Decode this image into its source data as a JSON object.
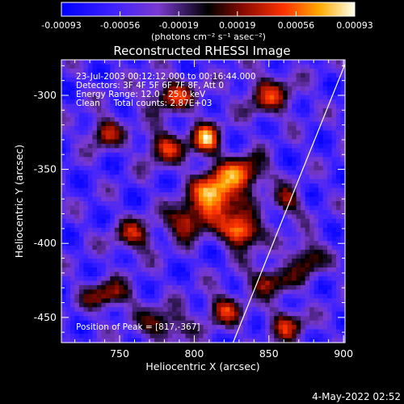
{
  "chart_data": {
    "type": "heatmap",
    "title": "Reconstructed RHESSI Image",
    "xlabel": "Heliocentric X (arcsec)",
    "ylabel": "Heliocentric Y (arcsec)",
    "xlim": [
      711,
      901
    ],
    "ylim": [
      -467,
      -276
    ],
    "x_ticks": [
      750,
      800,
      850,
      900
    ],
    "y_ticks": [
      -300,
      -350,
      -400,
      -450
    ],
    "colorbar": {
      "min": -0.00093,
      "max": 0.00093,
      "ticks": [
        "-0.00093",
        "-0.00056",
        "-0.00019",
        "0.00019",
        "0.00056",
        "0.00093"
      ],
      "unit_label": "(photons cm⁻² s⁻¹ asec⁻²)"
    },
    "info_lines": [
      "23-Jul-2003 00:12:12.000 to 00:16:44.000",
      "Detectors: 3F 4F 5F 6F 7F 8F, Att 0",
      "Energy Range: 12.0 - 25.0 keV",
      "Clean     Total counts: 2.87E+03"
    ],
    "peak_label": "Position of Peak = [817,-367]",
    "peak": [
      817,
      -367
    ],
    "limb_line": [
      [
        826,
        -467
      ],
      [
        901,
        -279
      ]
    ],
    "sources": [
      {
        "x": 815,
        "y": -367,
        "amp": 0.00093,
        "sx": 11,
        "sy": 11
      },
      {
        "x": 832,
        "y": -392,
        "amp": 0.00078,
        "sx": 9,
        "sy": 8
      },
      {
        "x": 808,
        "y": -330,
        "amp": 0.0006,
        "sx": 7,
        "sy": 8
      },
      {
        "x": 835,
        "y": -352,
        "amp": 0.00042,
        "sx": 10,
        "sy": 8
      },
      {
        "x": 795,
        "y": -385,
        "amp": 0.00045,
        "sx": 9,
        "sy": 8
      },
      {
        "x": 780,
        "y": -335,
        "amp": 0.00025,
        "sx": 10,
        "sy": 9
      },
      {
        "x": 785,
        "y": -300,
        "amp": 0.0003,
        "sx": 12,
        "sy": 8
      },
      {
        "x": 850,
        "y": -425,
        "amp": 0.0003,
        "sx": 10,
        "sy": 7
      },
      {
        "x": 740,
        "y": -325,
        "amp": 0.00025,
        "sx": 8,
        "sy": 8
      },
      {
        "x": 850,
        "y": -300,
        "amp": 0.00022,
        "sx": 12,
        "sy": 10
      },
      {
        "x": 742,
        "y": -435,
        "amp": 0.00025,
        "sx": 12,
        "sy": 7
      },
      {
        "x": 820,
        "y": -445,
        "amp": 0.00025,
        "sx": 9,
        "sy": 8
      },
      {
        "x": 875,
        "y": -410,
        "amp": 0.00022,
        "sx": 8,
        "sy": 9
      },
      {
        "x": 760,
        "y": -395,
        "amp": 0.0002,
        "sx": 10,
        "sy": 8
      },
      {
        "x": 780,
        "y": -455,
        "amp": 0.0002,
        "sx": 12,
        "sy": 8
      },
      {
        "x": 862,
        "y": -372,
        "amp": 0.0002,
        "sx": 7,
        "sy": 7
      },
      {
        "x": 862,
        "y": -455,
        "amp": 0.00022,
        "sx": 9,
        "sy": 8
      }
    ],
    "background": -0.00055
  },
  "timestamp": "4-May-2022 02:52"
}
